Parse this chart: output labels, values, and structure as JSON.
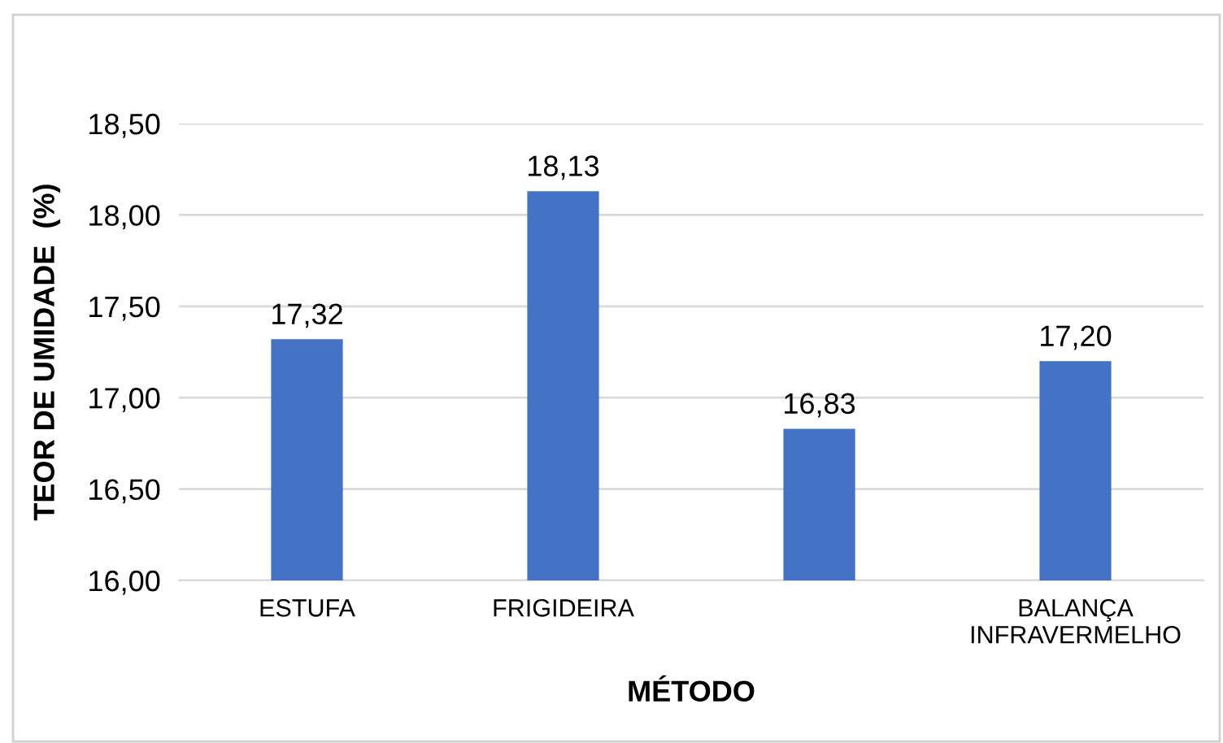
{
  "chart_data": {
    "type": "bar",
    "xlabel": "MÉTODO",
    "ylabel": "TEOR DE UMIDADE  (%)",
    "categories": [
      "ESTUFA",
      "FRIGIDEIRA",
      null,
      "BALANÇA\nINFRAVERMELHO"
    ],
    "values": [
      17.32,
      18.13,
      16.83,
      17.2
    ],
    "value_labels": [
      "17,32",
      "18,13",
      "16,83",
      "17,20"
    ],
    "color": "#4472c4",
    "ylim": [
      16,
      18.5
    ],
    "yticks": [
      {
        "value": 16,
        "label": "16,00"
      },
      {
        "value": 16.5,
        "label": "16,50"
      },
      {
        "value": 17,
        "label": "17,00"
      },
      {
        "value": 17.5,
        "label": "17,50"
      },
      {
        "value": 18,
        "label": "18,00"
      },
      {
        "value": 18.5,
        "label": "18,50"
      }
    ],
    "grid": "y"
  }
}
